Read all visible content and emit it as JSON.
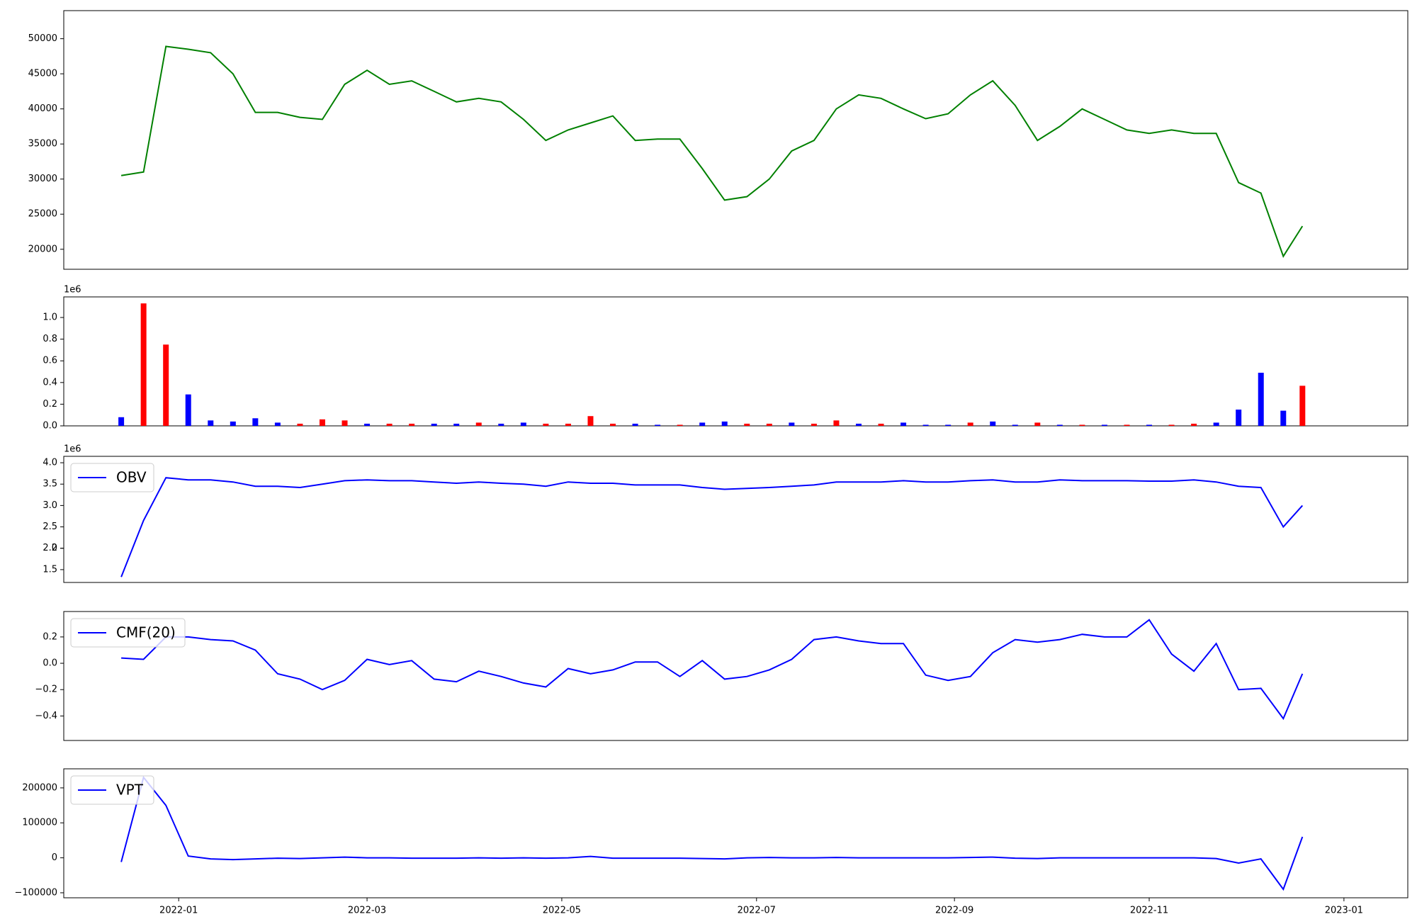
{
  "chart_data": {
    "type": "multi",
    "x": [
      "2021-12-14",
      "2021-12-21",
      "2021-12-28",
      "2022-01-04",
      "2022-01-11",
      "2022-01-18",
      "2022-01-25",
      "2022-02-01",
      "2022-02-08",
      "2022-02-15",
      "2022-02-22",
      "2022-03-01",
      "2022-03-08",
      "2022-03-15",
      "2022-03-22",
      "2022-03-29",
      "2022-04-05",
      "2022-04-12",
      "2022-04-19",
      "2022-04-26",
      "2022-05-03",
      "2022-05-10",
      "2022-05-17",
      "2022-05-24",
      "2022-05-31",
      "2022-06-07",
      "2022-06-14",
      "2022-06-21",
      "2022-06-28",
      "2022-07-05",
      "2022-07-12",
      "2022-07-19",
      "2022-07-26",
      "2022-08-02",
      "2022-08-09",
      "2022-08-16",
      "2022-08-23",
      "2022-08-30",
      "2022-09-06",
      "2022-09-13",
      "2022-09-20",
      "2022-09-27",
      "2022-10-04",
      "2022-10-11",
      "2022-10-18",
      "2022-10-25",
      "2022-11-01",
      "2022-11-08",
      "2022-11-15",
      "2022-11-22",
      "2022-11-29",
      "2022-12-06",
      "2022-12-13",
      "2022-12-19"
    ],
    "xlim": [
      "2021-11-26",
      "2023-01-21"
    ],
    "xticks": [
      {
        "value": "2022-01-01",
        "label": "2022-01"
      },
      {
        "value": "2022-03-01",
        "label": "2022-03"
      },
      {
        "value": "2022-05-01",
        "label": "2022-05"
      },
      {
        "value": "2022-07-01",
        "label": "2022-07"
      },
      {
        "value": "2022-09-01",
        "label": "2022-09"
      },
      {
        "value": "2022-11-01",
        "label": "2022-11"
      },
      {
        "value": "2023-01-01",
        "label": "2023-01"
      }
    ],
    "panels": [
      {
        "type": "line",
        "ylim": [
          17150,
          54000
        ],
        "yticks": [
          20000,
          25000,
          30000,
          35000,
          40000,
          45000,
          50000
        ],
        "series": [
          {
            "color": "#008000",
            "values": [
              30500,
              31000,
              48900,
              48500,
              48000,
              45000,
              39500,
              39500,
              38800,
              38500,
              43500,
              45500,
              43500,
              44000,
              42500,
              41000,
              41500,
              41000,
              38500,
              35500,
              37000,
              38000,
              39000,
              35500,
              35700,
              35700,
              31500,
              27000,
              27500,
              30000,
              34000,
              35500,
              40000,
              42000,
              41500,
              40000,
              38600,
              39300,
              42000,
              44000,
              40500,
              35500,
              37500,
              40000,
              38500,
              37000,
              36500,
              37000,
              36500,
              36500,
              29500,
              28000,
              19000,
              23300
            ]
          }
        ]
      },
      {
        "type": "bar",
        "ylim": [
          0,
          1.19
        ],
        "y_offset_label": "1e6",
        "yticks": [
          {
            "value": 0,
            "label": "0.0"
          },
          {
            "value": 0.2,
            "label": "0.2"
          },
          {
            "value": 0.4,
            "label": "0.4"
          },
          {
            "value": 0.6,
            "label": "0.6"
          },
          {
            "value": 0.8,
            "label": "0.8"
          },
          {
            "value": 1,
            "label": "1.0"
          }
        ],
        "values": [
          0.08,
          1.13,
          0.75,
          0.29,
          0.05,
          0.04,
          0.07,
          0.03,
          0.02,
          0.06,
          0.05,
          0.02,
          0.02,
          0.02,
          0.02,
          0.02,
          0.03,
          0.02,
          0.03,
          0.02,
          0.02,
          0.09,
          0.02,
          0.02,
          0.01,
          0.01,
          0.03,
          0.04,
          0.02,
          0.02,
          0.03,
          0.02,
          0.05,
          0.02,
          0.02,
          0.03,
          0.01,
          0.01,
          0.03,
          0.04,
          0.01,
          0.03,
          0.01,
          0.01,
          0.01,
          0.01,
          0.01,
          0.01,
          0.02,
          0.03,
          0.15,
          0.49,
          0.14,
          0.37
        ],
        "colors": [
          "blue",
          "red",
          "red",
          "blue",
          "blue",
          "blue",
          "blue",
          "blue",
          "red",
          "red",
          "red",
          "blue",
          "red",
          "red",
          "blue",
          "blue",
          "red",
          "blue",
          "blue",
          "red",
          "red",
          "red",
          "red",
          "blue",
          "blue",
          "red",
          "blue",
          "blue",
          "red",
          "red",
          "blue",
          "red",
          "red",
          "blue",
          "red",
          "blue",
          "blue",
          "blue",
          "red",
          "blue",
          "blue",
          "red",
          "blue",
          "red",
          "blue",
          "red",
          "blue",
          "red",
          "red",
          "blue",
          "blue",
          "blue",
          "blue",
          "red"
        ]
      },
      {
        "type": "line",
        "ylim": [
          1.2,
          4.15
        ],
        "y_offset_label": "1e6",
        "legend": "upper left",
        "yticks": [
          1.5,
          2,
          {
            "value": 2,
            "label": "2.0"
          },
          2.5,
          {
            "value": 3,
            "label": "3.0"
          },
          3.5,
          {
            "value": 4,
            "label": "4.0"
          }
        ],
        "series": [
          {
            "name": "OBV",
            "color": "#0000ff",
            "values": [
              1.33,
              2.65,
              3.65,
              3.6,
              3.6,
              3.55,
              3.45,
              3.45,
              3.42,
              3.5,
              3.58,
              3.6,
              3.58,
              3.58,
              3.55,
              3.52,
              3.55,
              3.52,
              3.5,
              3.45,
              3.55,
              3.52,
              3.52,
              3.48,
              3.48,
              3.48,
              3.42,
              3.38,
              3.4,
              3.42,
              3.45,
              3.48,
              3.55,
              3.55,
              3.55,
              3.58,
              3.55,
              3.55,
              3.58,
              3.6,
              3.55,
              3.55,
              3.6,
              3.58,
              3.58,
              3.58,
              3.57,
              3.57,
              3.6,
              3.55,
              3.45,
              3.42,
              2.5,
              3.0
            ]
          }
        ]
      },
      {
        "type": "line",
        "ylim": [
          -0.586,
          0.393
        ],
        "legend": "upper left",
        "yticks": [
          {
            "value": -0.4,
            "label": "−0.4"
          },
          {
            "value": -0.2,
            "label": "−0.2"
          },
          {
            "value": 0,
            "label": "0.0"
          },
          0.2
        ],
        "series": [
          {
            "name": "CMF(20)",
            "color": "#0000ff",
            "values": [
              0.04,
              0.03,
              0.2,
              0.2,
              0.18,
              0.17,
              0.1,
              -0.08,
              -0.12,
              -0.2,
              -0.13,
              0.03,
              -0.01,
              0.02,
              -0.12,
              -0.14,
              -0.06,
              -0.1,
              -0.15,
              -0.18,
              -0.04,
              -0.08,
              -0.05,
              0.01,
              0.01,
              -0.1,
              0.02,
              -0.12,
              -0.1,
              -0.05,
              0.03,
              0.18,
              0.2,
              0.17,
              0.15,
              0.15,
              -0.09,
              -0.13,
              -0.1,
              0.08,
              0.18,
              0.16,
              0.18,
              0.22,
              0.2,
              0.2,
              0.33,
              0.07,
              -0.06,
              0.15,
              -0.2,
              -0.19,
              -0.42,
              -0.08
            ]
          }
        ]
      },
      {
        "type": "line",
        "ylim": [
          -114300,
          254500
        ],
        "legend": "upper left",
        "yticks": [
          {
            "value": -100000,
            "label": "−100000"
          },
          0,
          100000,
          200000
        ],
        "series": [
          {
            "name": "VPT",
            "color": "#0000ff",
            "values": [
              -12000,
              230000,
              150000,
              5000,
              -3000,
              -5000,
              -3000,
              -1000,
              -2000,
              0,
              2000,
              0,
              0,
              -1000,
              -1000,
              -1000,
              0,
              -1000,
              0,
              -1000,
              0,
              4000,
              -1000,
              -1000,
              -1000,
              -1000,
              -2000,
              -3000,
              0,
              1000,
              0,
              0,
              1000,
              0,
              0,
              0,
              0,
              0,
              1000,
              2000,
              -1000,
              -2000,
              0,
              0,
              0,
              0,
              0,
              0,
              0,
              -2000,
              -15000,
              -3000,
              -90000,
              60000
            ]
          }
        ]
      }
    ]
  }
}
